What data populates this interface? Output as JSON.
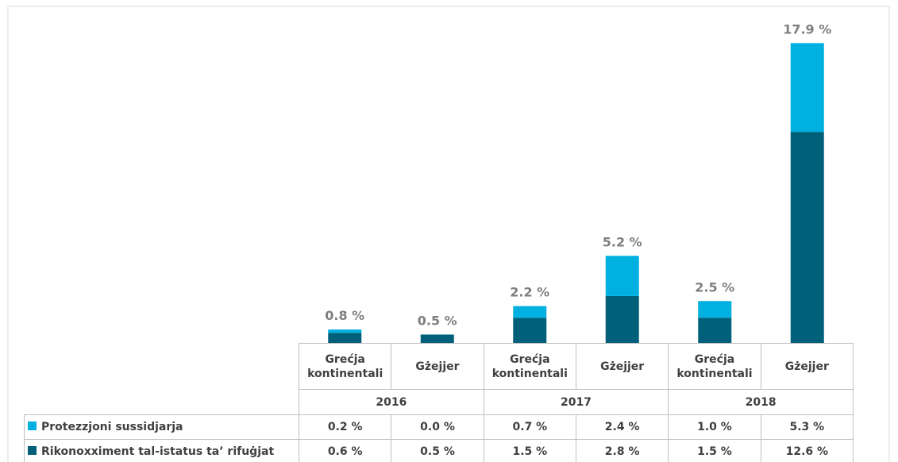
{
  "chart_data": {
    "type": "stacked_bar",
    "categories": [
      "Grećja kontinentali",
      "Gżejjer",
      "Grećja kontinentali",
      "Gżejjer",
      "Grećja kontinentali",
      "Gżejjer"
    ],
    "groups": [
      "2016",
      "2017",
      "2018"
    ],
    "series": [
      {
        "name": "Protezzjoni sussidjarja",
        "color": "#00b0e0",
        "values": [
          0.2,
          0.0,
          0.7,
          2.4,
          1.0,
          5.3
        ],
        "value_labels": [
          "0.2 %",
          "0.0 %",
          "0.7 %",
          "2.4 %",
          "1.0 %",
          "5.3 %"
        ]
      },
      {
        "name": "Rikonoxximent tal-istatus ta’ rifuġjat",
        "color": "#00607a",
        "values": [
          0.6,
          0.5,
          1.5,
          2.8,
          1.5,
          12.6
        ],
        "value_labels": [
          "0.6 %",
          "0.5 %",
          "1.5 %",
          "2.8 %",
          "1.5 %",
          "12.6 %"
        ]
      }
    ],
    "totals": {
      "values": [
        0.8,
        0.5,
        2.2,
        5.2,
        2.5,
        17.9
      ],
      "value_labels": [
        "0.8 %",
        "0.5 %",
        "2.2 %",
        "5.2 %",
        "2.5 %",
        "17.9 %"
      ]
    },
    "ylim": [
      0,
      20
    ]
  }
}
